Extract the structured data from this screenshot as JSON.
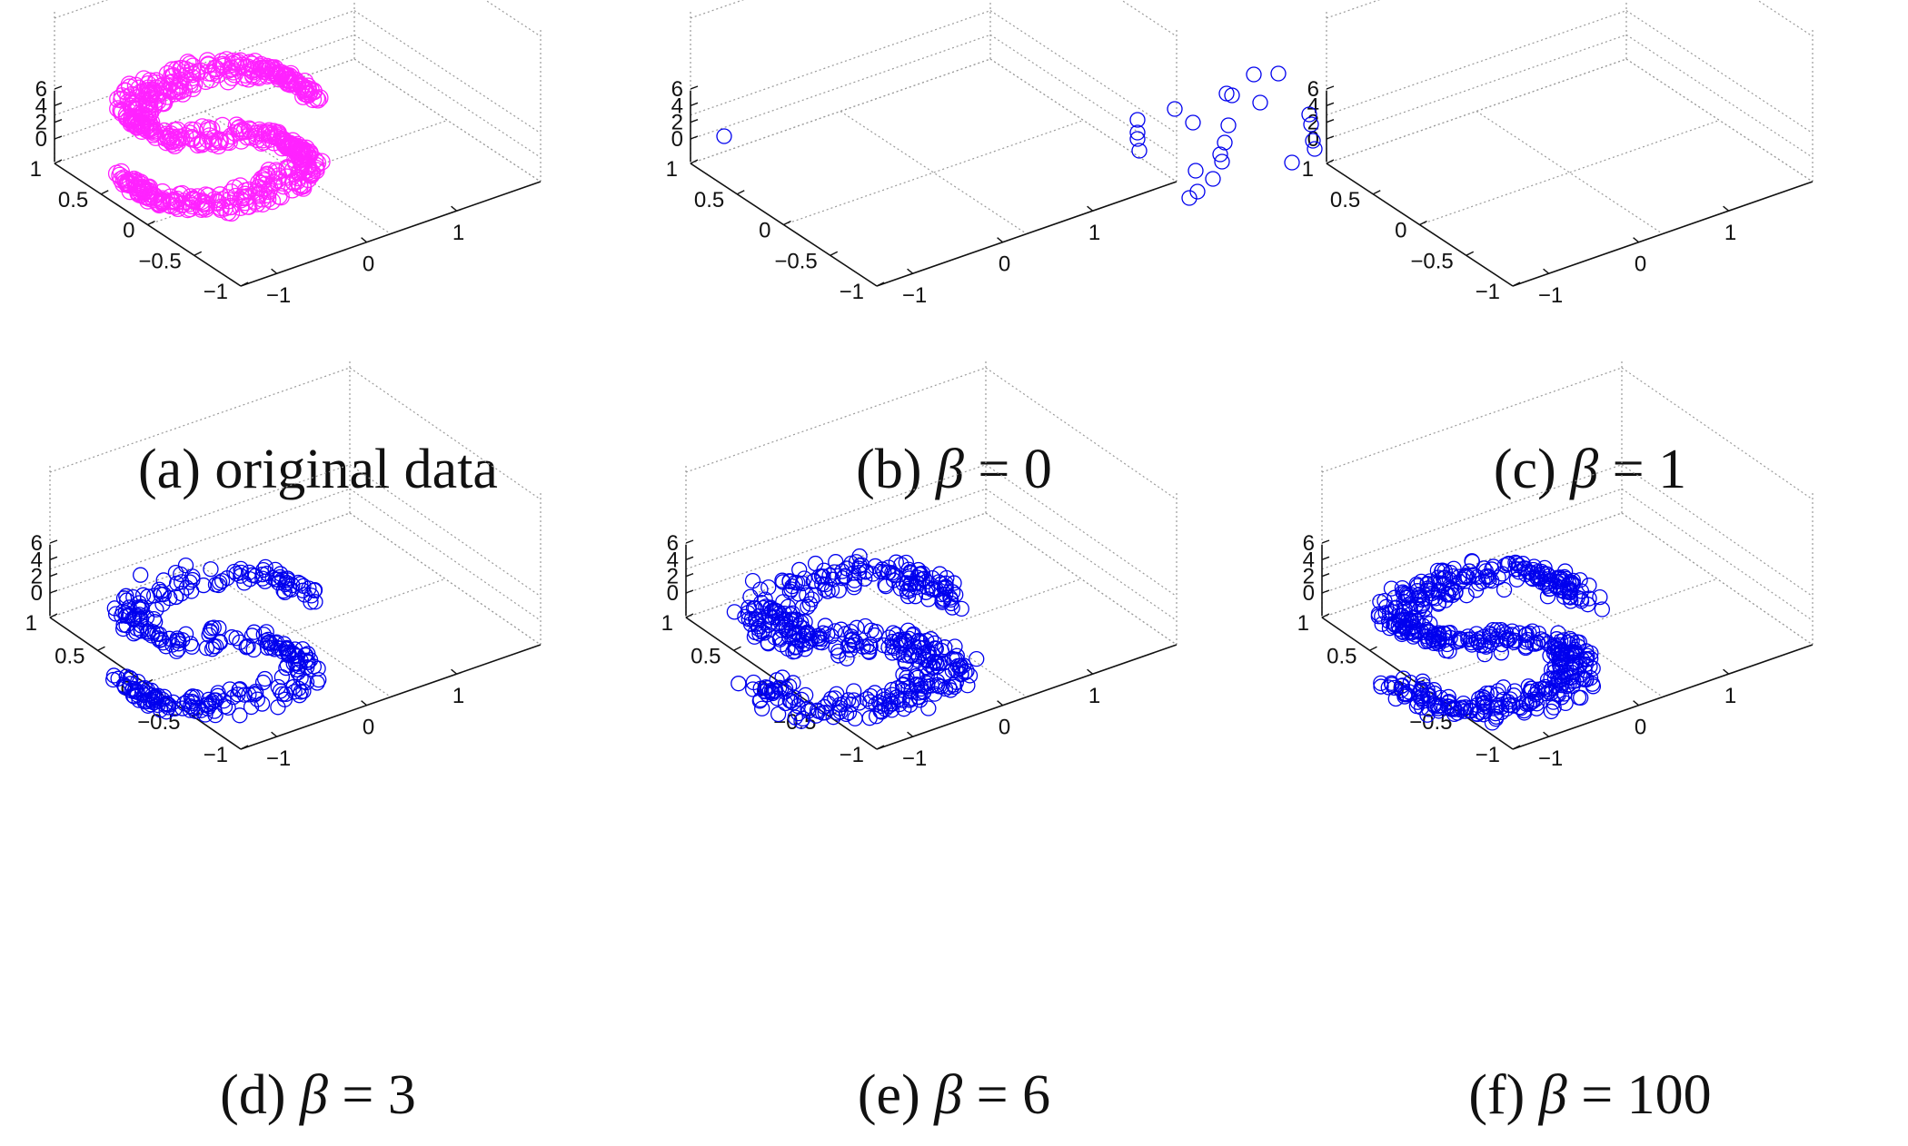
{
  "chart_data": [
    {
      "type": "scatter",
      "label": "(a)",
      "title": "original data",
      "color": "#ff22ff",
      "n_points": 620,
      "xlim": [
        -1,
        1
      ],
      "ylim": [
        -1,
        1
      ],
      "zlim": [
        0,
        6
      ],
      "x_ticks": [
        "1",
        "0.5",
        "0",
        "−0.5",
        "−1"
      ],
      "y_ticks": [
        "1",
        "0",
        "−1"
      ],
      "z_ticks": [
        "6",
        "4",
        "2",
        "0"
      ],
      "grid": true
    },
    {
      "type": "scatter",
      "label": "(b)",
      "beta_label": "β",
      "equals": "=",
      "beta": "0",
      "color": "#0000ee",
      "n_points": 1,
      "xlim": [
        -1,
        1
      ],
      "ylim": [
        -1,
        1
      ],
      "zlim": [
        0,
        6
      ],
      "x_ticks": [
        "1",
        "0.5",
        "0",
        "−0.5",
        "−1"
      ],
      "y_ticks": [
        "1",
        "0",
        "−1"
      ],
      "z_ticks": [
        "6",
        "4",
        "2",
        "0"
      ],
      "grid": true
    },
    {
      "type": "scatter",
      "label": "(c)",
      "beta_label": "β",
      "equals": "=",
      "beta": "1",
      "color": "#0000ee",
      "n_points": 27,
      "xlim": [
        -1,
        1
      ],
      "ylim": [
        -1,
        1
      ],
      "zlim": [
        0,
        6
      ],
      "x_ticks": [
        "1",
        "0.5",
        "0",
        "−0.5",
        "−1"
      ],
      "y_ticks": [
        "1",
        "0",
        "−1"
      ],
      "z_ticks": [
        "6",
        "4",
        "2",
        "0"
      ],
      "grid": true
    },
    {
      "type": "scatter",
      "label": "(d)",
      "beta_label": "β",
      "equals": "=",
      "beta": "3",
      "color": "#0000ee",
      "n_points": 330,
      "xlim": [
        -1,
        1
      ],
      "ylim": [
        -1,
        1
      ],
      "zlim": [
        0,
        6
      ],
      "x_ticks": [
        "1",
        "0.5",
        "0",
        "−0.5",
        "−1"
      ],
      "y_ticks": [
        "1",
        "0",
        "−1"
      ],
      "z_ticks": [
        "6",
        "4",
        "2",
        "0"
      ],
      "grid": true
    },
    {
      "type": "scatter",
      "label": "(e)",
      "beta_label": "β",
      "equals": "=",
      "beta": "6",
      "color": "#0000ee",
      "n_points": 480,
      "xlim": [
        -1,
        1
      ],
      "ylim": [
        -1,
        1
      ],
      "zlim": [
        0,
        6
      ],
      "x_ticks": [
        "1",
        "0.5",
        "0",
        "−0.5",
        "−1"
      ],
      "y_ticks": [
        "1",
        "0",
        "−1"
      ],
      "z_ticks": [
        "6",
        "4",
        "2",
        "0"
      ],
      "grid": true
    },
    {
      "type": "scatter",
      "label": "(f)",
      "beta_label": "β",
      "equals": "=",
      "beta": "100",
      "color": "#0000ee",
      "n_points": 560,
      "xlim": [
        -1,
        1
      ],
      "ylim": [
        -1,
        1
      ],
      "zlim": [
        0,
        6
      ],
      "x_ticks": [
        "1",
        "0.5",
        "0",
        "−0.5",
        "−1"
      ],
      "y_ticks": [
        "1",
        "0",
        "−1"
      ],
      "z_ticks": [
        "6",
        "4",
        "2",
        "0"
      ],
      "grid": true
    }
  ]
}
